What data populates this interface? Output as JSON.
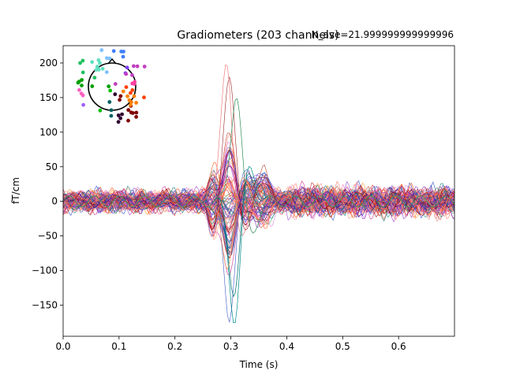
{
  "chart_data": {
    "type": "line",
    "title": "Gradiometers (203 channels)",
    "annotation": "N_ave=21.999999999999996",
    "xlabel": "Time (s)",
    "ylabel": "fT/cm",
    "xlim": [
      0.0,
      0.7
    ],
    "ylim": [
      -195,
      225
    ],
    "xticks": [
      0.0,
      0.1,
      0.2,
      0.3,
      0.4,
      0.5,
      0.6
    ],
    "xtick_labels": [
      "0.0",
      "0.1",
      "0.2",
      "0.3",
      "0.4",
      "0.5",
      "0.6"
    ],
    "yticks": [
      -150,
      -100,
      -50,
      0,
      50,
      100,
      150,
      200
    ],
    "ytick_labels": [
      "−150",
      "−100",
      "−50",
      "0",
      "50",
      "100",
      "150",
      "200"
    ],
    "grid": false,
    "legend": "none",
    "n_channels": 203,
    "sensor_map": {
      "shape": "head-outline",
      "placement": "top-left",
      "colored_by": "sensor-position"
    },
    "landmarks": [
      {
        "x": 0.0,
        "y": 0
      },
      {
        "x": 0.25,
        "y": 5
      },
      {
        "x": 0.27,
        "y": 45
      },
      {
        "x": 0.29,
        "y": -60
      },
      {
        "x": 0.3,
        "y": 205
      },
      {
        "x": 0.31,
        "y": -175
      },
      {
        "x": 0.33,
        "y": 20
      },
      {
        "x": 0.36,
        "y": 40
      },
      {
        "x": 0.7,
        "y": 0
      }
    ],
    "peak_max": {
      "x": 0.293,
      "y": 207
    },
    "peak_min": {
      "x": 0.307,
      "y": -177
    }
  }
}
